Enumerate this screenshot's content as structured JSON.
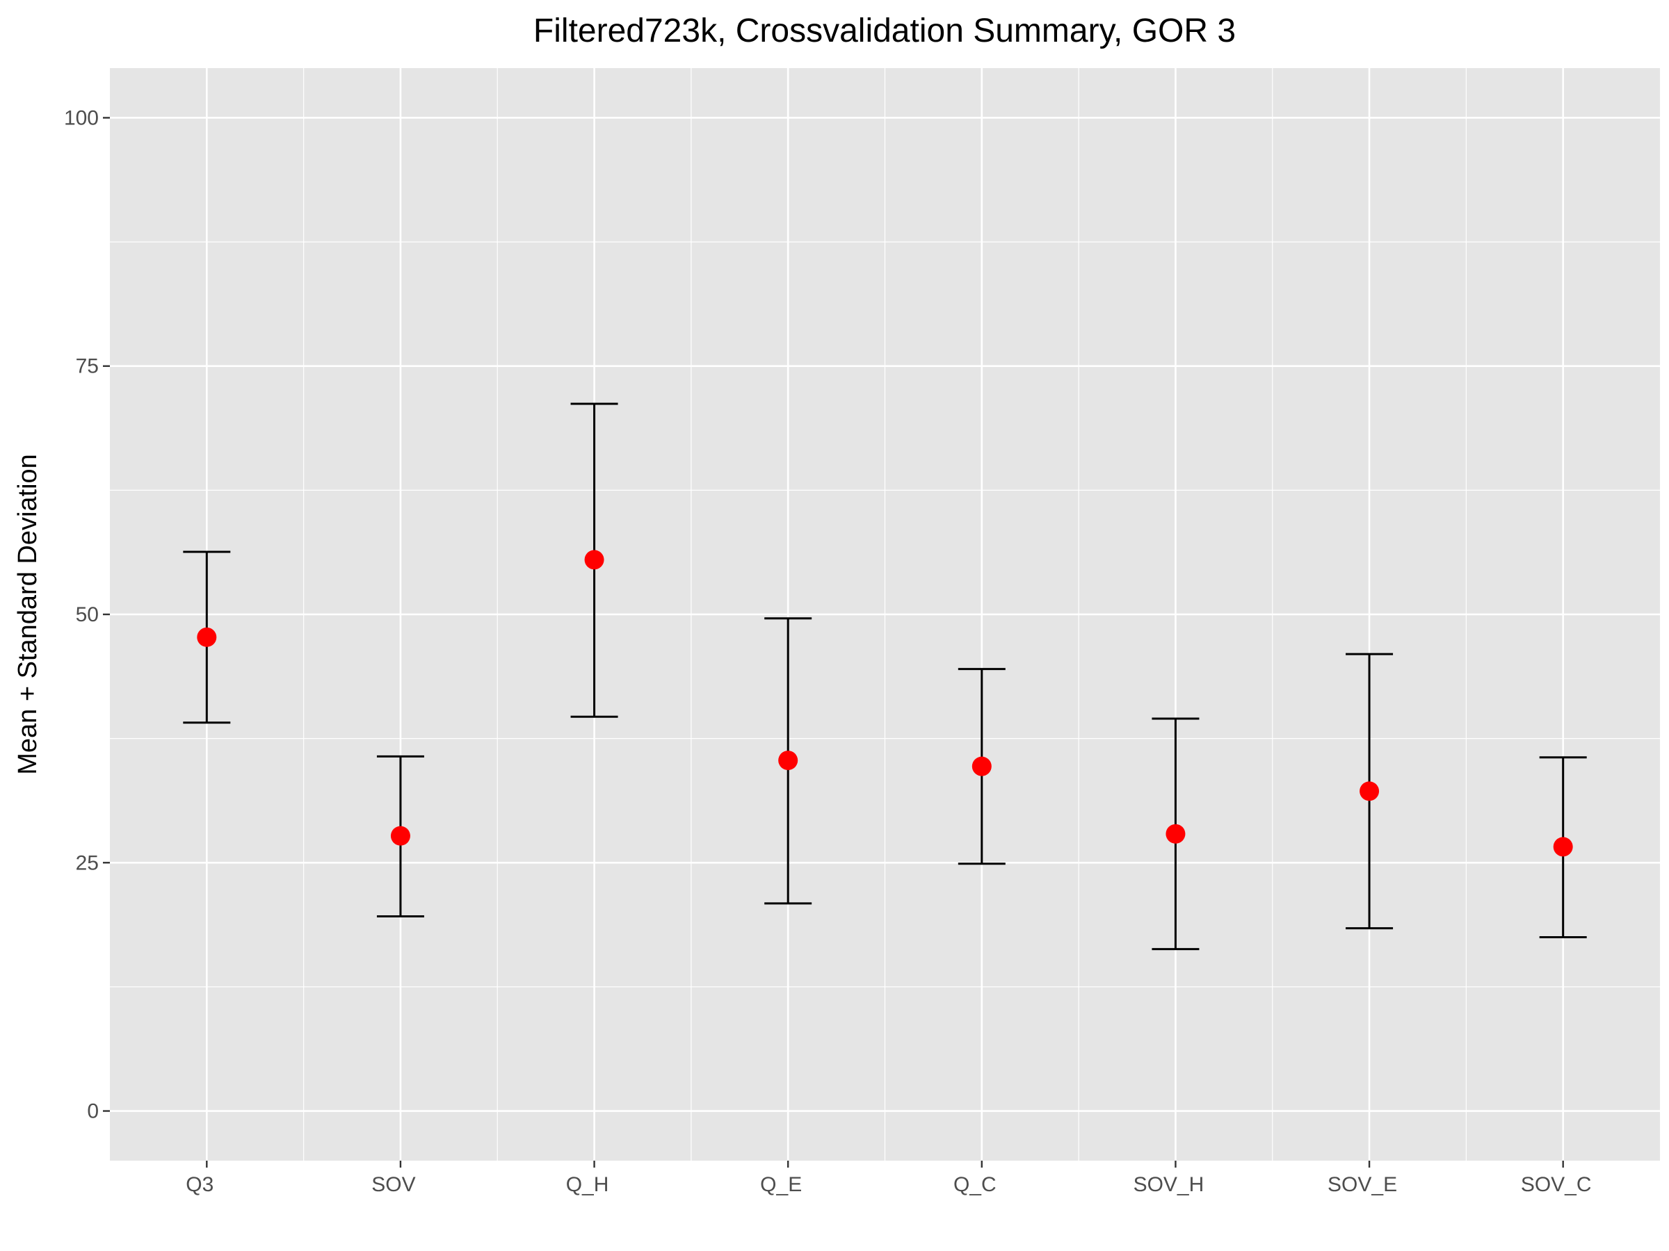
{
  "chart_data": {
    "type": "scatter",
    "title": "Filtered723k, Crossvalidation Summary, GOR 3",
    "xlabel": "",
    "ylabel": "Mean + Standard Deviation",
    "ylim": [
      -5,
      105
    ],
    "y_ticks": [
      0,
      25,
      50,
      75,
      100
    ],
    "y_tick_labels": [
      "0",
      "25",
      "50",
      "75",
      "100"
    ],
    "grid": true,
    "categories": [
      "Q3",
      "SOV",
      "Q_H",
      "Q_E",
      "Q_C",
      "SOV_H",
      "SOV_E",
      "SOV_C"
    ],
    "means": [
      47.7,
      27.7,
      55.5,
      35.3,
      34.7,
      27.9,
      32.2,
      26.6
    ],
    "lower": [
      39.1,
      19.6,
      39.7,
      20.9,
      24.9,
      16.3,
      18.4,
      17.5
    ],
    "upper": [
      56.3,
      35.7,
      71.2,
      49.6,
      44.5,
      39.5,
      46.0,
      35.6
    ],
    "colors": {
      "point": "#ff0000",
      "errorbar": "#000000",
      "panel": "#e5e5e5",
      "grid": "#ffffff"
    }
  }
}
